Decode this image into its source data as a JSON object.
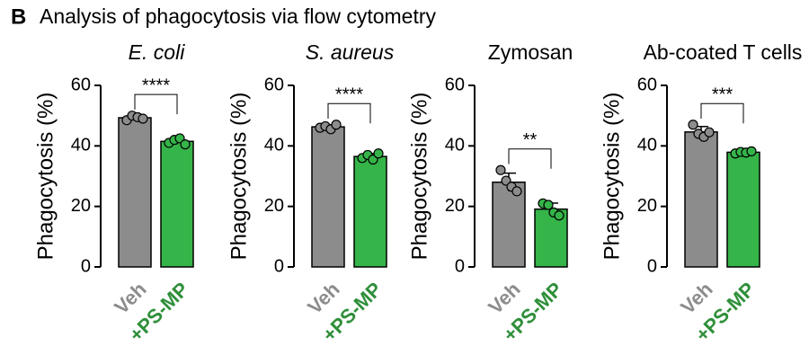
{
  "panel_label": "B",
  "title": "Analysis of phagocytosis via flow cytometry",
  "chart_data": [
    {
      "type": "bar",
      "title": "E. coli",
      "title_italic": true,
      "ylabel": "Phagocytosis (%)",
      "categories": [
        "Veh",
        "+PS-MP"
      ],
      "colors": [
        "#8c8c8c",
        "#35b449"
      ],
      "label_colors": [
        "#8c8c8c",
        "#2f8f3a"
      ],
      "values": [
        49.3,
        41.5
      ],
      "errors": [
        0.7,
        1.0
      ],
      "points": [
        [
          48.5,
          50,
          49.5,
          49
        ],
        [
          41,
          42,
          42.5,
          40.5
        ]
      ],
      "significance": "****",
      "ylim": [
        0,
        60
      ],
      "yticks": [
        0,
        20,
        40,
        60
      ]
    },
    {
      "type": "bar",
      "title": "S. aureus",
      "title_italic": true,
      "ylabel": "Phagocytosis (%)",
      "categories": [
        "Veh",
        "+PS-MP"
      ],
      "colors": [
        "#8c8c8c",
        "#35b449"
      ],
      "label_colors": [
        "#8c8c8c",
        "#2f8f3a"
      ],
      "values": [
        46.3,
        36.5
      ],
      "errors": [
        0.7,
        1.0
      ],
      "points": [
        [
          46,
          46.5,
          45.5,
          47
        ],
        [
          36,
          37,
          35.5,
          37.5
        ]
      ],
      "significance": "****",
      "ylim": [
        0,
        60
      ],
      "yticks": [
        0,
        20,
        40,
        60
      ]
    },
    {
      "type": "bar",
      "title": "Zymosan",
      "title_italic": false,
      "ylabel": "Phagocytosis (%)",
      "categories": [
        "Veh",
        "+PS-MP"
      ],
      "colors": [
        "#8c8c8c",
        "#35b449"
      ],
      "label_colors": [
        "#8c8c8c",
        "#2f8f3a"
      ],
      "values": [
        28,
        19.1
      ],
      "errors": [
        3,
        2
      ],
      "points": [
        [
          32,
          28.5,
          26.5,
          25
        ],
        [
          21,
          20.5,
          18,
          17
        ]
      ],
      "significance": "**",
      "ylim": [
        0,
        60
      ],
      "yticks": [
        0,
        20,
        40,
        60
      ]
    },
    {
      "type": "bar",
      "title": "Ab-coated T cells",
      "title_italic": false,
      "ylabel": "Phagocytosis (%)",
      "categories": [
        "Veh",
        "+PS-MP"
      ],
      "colors": [
        "#8c8c8c",
        "#35b449"
      ],
      "label_colors": [
        "#8c8c8c",
        "#2f8f3a"
      ],
      "values": [
        44.6,
        37.9
      ],
      "errors": [
        1.8,
        0.4
      ],
      "points": [
        [
          47,
          44,
          43,
          44.5
        ],
        [
          37.5,
          38,
          37.8,
          38.2
        ]
      ],
      "significance": "***",
      "ylim": [
        0,
        60
      ],
      "yticks": [
        0,
        20,
        40,
        60
      ]
    }
  ]
}
